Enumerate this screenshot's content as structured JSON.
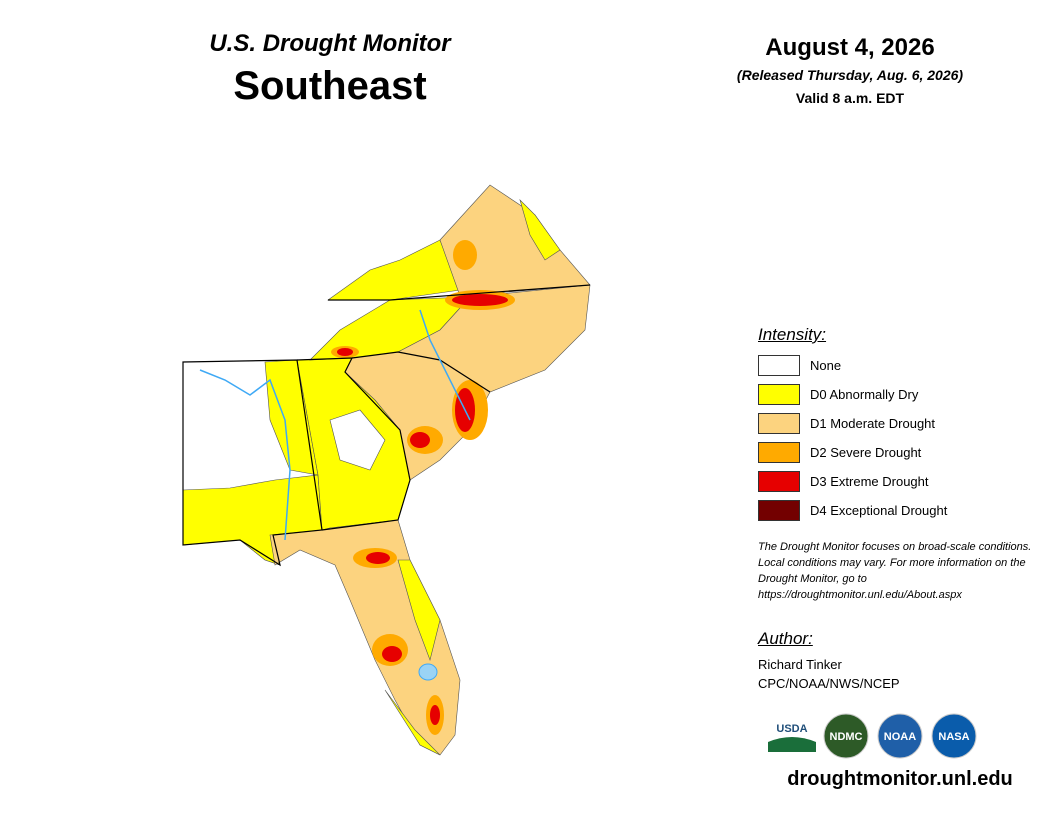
{
  "header": {
    "title": "U.S. Drought Monitor",
    "region": "Southeast",
    "date": "August 4, 2026",
    "released": "(Released Thursday, Aug. 6, 2026)",
    "valid": "Valid 8 a.m. EDT"
  },
  "legend": {
    "title": "Intensity:",
    "items": [
      {
        "label": "None",
        "color": "#ffffff"
      },
      {
        "label": "D0 Abnormally Dry",
        "color": "#ffff00"
      },
      {
        "label": "D1 Moderate Drought",
        "color": "#fcd37f"
      },
      {
        "label": "D2 Severe Drought",
        "color": "#ffaa00"
      },
      {
        "label": "D3 Extreme Drought",
        "color": "#e60000"
      },
      {
        "label": "D4 Exceptional Drought",
        "color": "#730000"
      }
    ]
  },
  "note": "The Drought Monitor focuses on broad-scale conditions. Local conditions may vary. For more information on the Drought Monitor, go to https://droughtmonitor.unl.edu/About.aspx",
  "author": {
    "title": "Author:",
    "name": "Richard Tinker",
    "org": "CPC/NOAA/NWS/NCEP"
  },
  "logos": [
    "USDA",
    "NDMC",
    "NOAA",
    "NASA"
  ],
  "url": "droughtmonitor.unl.edu"
}
